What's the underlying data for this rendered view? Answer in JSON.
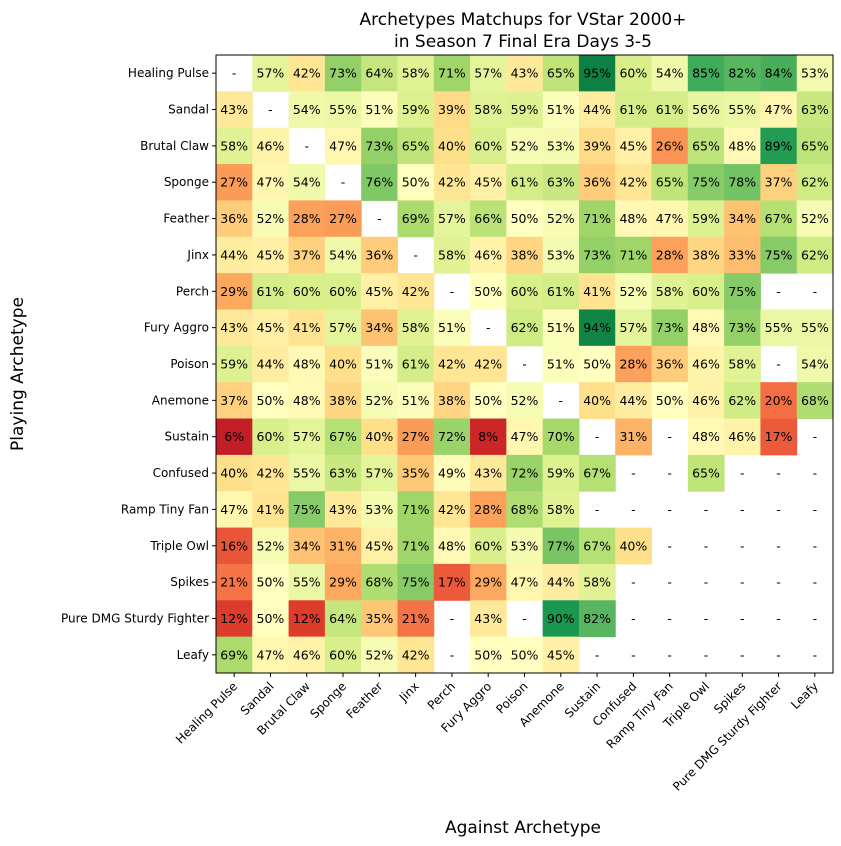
{
  "chart_data": {
    "type": "heatmap",
    "title_lines": [
      "Archetypes Matchups for VStar 2000+",
      "in Season 7 Final Era Days 3-5"
    ],
    "xlabel": "Against Archetype",
    "ylabel": "Playing Archetype",
    "colormap": "RdYlGn",
    "value_range": [
      0,
      100
    ],
    "grid": false,
    "rows": [
      "Healing Pulse",
      "Sandal",
      "Brutal Claw",
      "Sponge",
      "Feather",
      "Jinx",
      "Perch",
      "Fury Aggro",
      "Poison",
      "Anemone",
      "Sustain",
      "Confused",
      "Ramp Tiny Fan",
      "Triple Owl",
      "Spikes",
      "Pure DMG Sturdy Fighter",
      "Leafy"
    ],
    "columns": [
      "Healing Pulse",
      "Sandal",
      "Brutal Claw",
      "Sponge",
      "Feather",
      "Jinx",
      "Perch",
      "Fury Aggro",
      "Poison",
      "Anemone",
      "Sustain",
      "Confused",
      "Ramp Tiny Fan",
      "Triple Owl",
      "Spikes",
      "Pure DMG Sturdy Fighter",
      "Leafy"
    ],
    "values": [
      [
        null,
        57,
        42,
        73,
        64,
        58,
        71,
        57,
        43,
        65,
        95,
        60,
        54,
        85,
        82,
        84,
        53
      ],
      [
        43,
        null,
        54,
        55,
        51,
        59,
        39,
        58,
        59,
        51,
        44,
        61,
        61,
        56,
        55,
        47,
        63
      ],
      [
        58,
        46,
        null,
        47,
        73,
        65,
        40,
        60,
        52,
        53,
        39,
        45,
        26,
        65,
        48,
        89,
        65
      ],
      [
        27,
        47,
        54,
        null,
        76,
        50,
        42,
        45,
        61,
        63,
        36,
        42,
        65,
        75,
        78,
        37,
        62
      ],
      [
        36,
        52,
        28,
        27,
        null,
        69,
        57,
        66,
        50,
        52,
        71,
        48,
        47,
        59,
        34,
        67,
        52
      ],
      [
        44,
        45,
        37,
        54,
        36,
        null,
        58,
        46,
        38,
        53,
        73,
        71,
        28,
        38,
        33,
        75,
        62
      ],
      [
        29,
        61,
        60,
        60,
        45,
        42,
        null,
        50,
        60,
        61,
        41,
        52,
        58,
        60,
        75,
        null,
        null
      ],
      [
        43,
        45,
        41,
        57,
        34,
        58,
        51,
        null,
        62,
        51,
        94,
        57,
        73,
        48,
        73,
        55,
        55
      ],
      [
        59,
        44,
        48,
        40,
        51,
        61,
        42,
        42,
        null,
        51,
        50,
        28,
        36,
        46,
        58,
        null,
        54
      ],
      [
        37,
        50,
        48,
        38,
        52,
        51,
        38,
        50,
        52,
        null,
        40,
        44,
        50,
        46,
        62,
        20,
        68
      ],
      [
        6,
        60,
        57,
        67,
        40,
        27,
        72,
        8,
        47,
        70,
        null,
        31,
        null,
        48,
        46,
        17,
        null
      ],
      [
        40,
        42,
        55,
        63,
        57,
        35,
        49,
        43,
        72,
        59,
        67,
        null,
        null,
        65,
        null,
        null,
        null
      ],
      [
        47,
        41,
        75,
        43,
        53,
        71,
        42,
        28,
        68,
        58,
        null,
        null,
        null,
        null,
        null,
        null,
        null
      ],
      [
        16,
        52,
        34,
        31,
        45,
        71,
        48,
        60,
        53,
        77,
        67,
        40,
        null,
        null,
        null,
        null,
        null
      ],
      [
        21,
        50,
        55,
        29,
        68,
        75,
        17,
        29,
        47,
        44,
        58,
        null,
        null,
        null,
        null,
        null,
        null
      ],
      [
        12,
        50,
        12,
        64,
        35,
        21,
        null,
        43,
        null,
        90,
        82,
        null,
        null,
        null,
        null,
        null,
        null
      ],
      [
        69,
        47,
        46,
        60,
        52,
        42,
        null,
        50,
        50,
        45,
        null,
        null,
        null,
        null,
        null,
        null,
        null
      ]
    ],
    "missing_label": "-",
    "value_suffix": "%"
  }
}
